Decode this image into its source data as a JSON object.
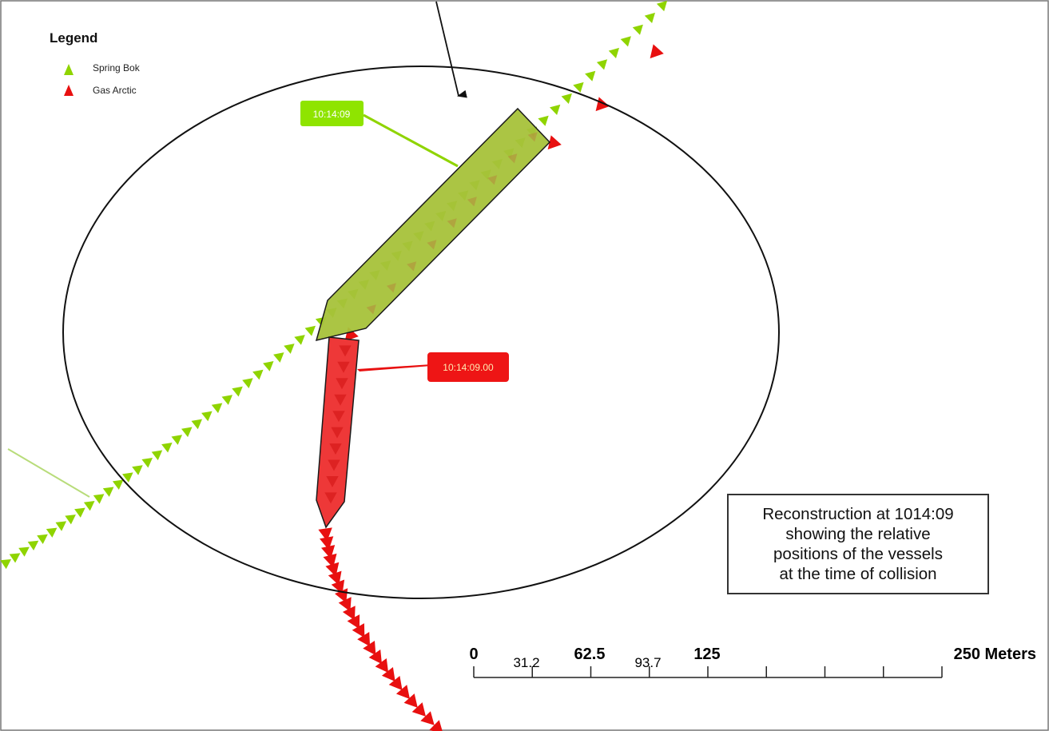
{
  "legend": {
    "title": "Legend",
    "items": [
      {
        "label": "Spring Bok",
        "color": "#8fd400"
      },
      {
        "label": "Gas Arctic",
        "color": "#e81010"
      }
    ]
  },
  "vessels": {
    "spring_bok": {
      "time_tag": "10:14:09",
      "hull_color": "#a6c23a",
      "tag_color": "#8fe400"
    },
    "gas_arctic": {
      "time_tag": "10:14:09.00",
      "hull_color": "#ee3838",
      "tag_color": "#ee1515"
    }
  },
  "caption": {
    "lines": [
      "Reconstruction at 1014:09",
      "showing the relative",
      "positions of the vessels",
      "at the time of collision"
    ]
  },
  "scale_bar": {
    "labels_major": [
      "0",
      "62.5",
      "125",
      "250 Meters"
    ],
    "labels_minor": [
      "31.2",
      "93.7"
    ]
  }
}
